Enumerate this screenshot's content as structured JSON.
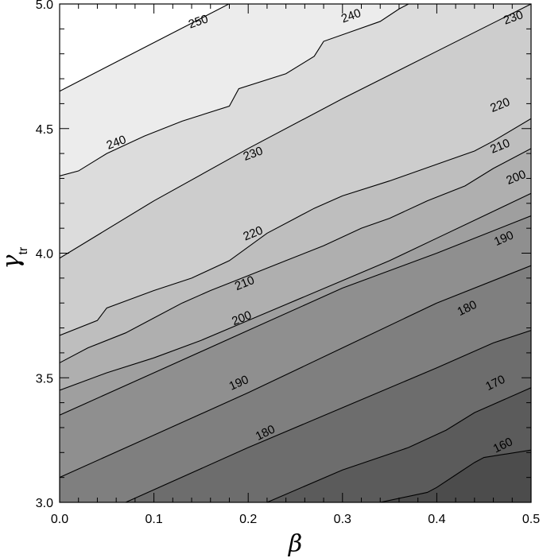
{
  "chart_data": {
    "type": "contour",
    "title": "",
    "xlabel": "β",
    "ylabel_main": "γ",
    "ylabel_sub": "tr",
    "xlim": [
      0.0,
      0.5
    ],
    "ylim": [
      3.0,
      5.0
    ],
    "x_ticks": [
      "0.0",
      "0.1",
      "0.2",
      "0.3",
      "0.4",
      "0.5"
    ],
    "y_ticks": [
      "3.0",
      "3.5",
      "4.0",
      "4.5",
      "5.0"
    ],
    "levels": [
      {
        "value": "250",
        "fill": "#ffffff",
        "points": [
          [
            0.0,
            4.65
          ],
          [
            0.2,
            5.04
          ]
        ],
        "label": {
          "x": 0.147,
          "y": 4.93,
          "rot": 19
        }
      },
      {
        "value": "240",
        "fill": "#ececec",
        "points": [
          [
            0.0,
            4.31
          ],
          [
            0.02,
            4.33
          ],
          [
            0.05,
            4.4
          ],
          [
            0.09,
            4.47
          ],
          [
            0.13,
            4.53
          ],
          [
            0.18,
            4.59
          ],
          [
            0.19,
            4.66
          ],
          [
            0.24,
            4.72
          ],
          [
            0.27,
            4.79
          ],
          [
            0.28,
            4.85
          ],
          [
            0.31,
            4.89
          ],
          [
            0.34,
            4.93
          ],
          [
            0.36,
            4.98
          ],
          [
            0.38,
            5.02
          ]
        ],
        "label": {
          "x": 0.06,
          "y": 4.445,
          "rot": 20,
          "label2x": 0.309,
          "label2y": 4.953
        }
      },
      {
        "value": "230",
        "fill": "#dcdcdc",
        "points": [
          [
            0.0,
            3.98
          ],
          [
            0.1,
            4.21
          ],
          [
            0.2,
            4.42
          ],
          [
            0.3,
            4.62
          ],
          [
            0.4,
            4.81
          ],
          [
            0.5,
            5.0
          ]
        ],
        "label": {
          "x": 0.205,
          "y": 4.4,
          "rot": 20,
          "label2x": 0.481,
          "label2y": 4.946
        }
      },
      {
        "value": "220",
        "fill": "#cdcdcd",
        "points": [
          [
            0.0,
            3.67
          ],
          [
            0.04,
            3.73
          ],
          [
            0.05,
            3.78
          ],
          [
            0.1,
            3.85
          ],
          [
            0.14,
            3.9
          ],
          [
            0.18,
            3.97
          ],
          [
            0.22,
            4.08
          ],
          [
            0.25,
            4.14
          ],
          [
            0.27,
            4.18
          ],
          [
            0.3,
            4.23
          ],
          [
            0.35,
            4.29
          ],
          [
            0.41,
            4.37
          ],
          [
            0.44,
            4.41
          ],
          [
            0.46,
            4.45
          ],
          [
            0.5,
            4.54
          ]
        ],
        "label": {
          "x": 0.205,
          "y": 4.08,
          "rot": 22,
          "label2x": 0.467,
          "label2y": 4.595
        }
      },
      {
        "value": "210",
        "fill": "#bebebe",
        "points": [
          [
            0.0,
            3.56
          ],
          [
            0.03,
            3.62
          ],
          [
            0.07,
            3.68
          ],
          [
            0.1,
            3.74
          ],
          [
            0.13,
            3.8
          ],
          [
            0.16,
            3.85
          ],
          [
            0.2,
            3.91
          ],
          [
            0.24,
            3.97
          ],
          [
            0.28,
            4.03
          ],
          [
            0.32,
            4.1
          ],
          [
            0.35,
            4.14
          ],
          [
            0.39,
            4.21
          ],
          [
            0.43,
            4.27
          ],
          [
            0.46,
            4.34
          ],
          [
            0.5,
            4.42
          ]
        ],
        "label": {
          "x": 0.196,
          "y": 3.88,
          "rot": 22,
          "label2x": 0.467,
          "label2y": 4.43
        }
      },
      {
        "value": "200",
        "fill": "#afafaf",
        "points": [
          [
            0.0,
            3.45
          ],
          [
            0.05,
            3.52
          ],
          [
            0.1,
            3.58
          ],
          [
            0.15,
            3.65
          ],
          [
            0.2,
            3.73
          ],
          [
            0.25,
            3.81
          ],
          [
            0.3,
            3.89
          ],
          [
            0.35,
            3.97
          ],
          [
            0.4,
            4.06
          ],
          [
            0.45,
            4.15
          ],
          [
            0.5,
            4.24
          ]
        ],
        "label": {
          "x": 0.193,
          "y": 3.74,
          "rot": 22,
          "label2x": 0.484,
          "label2y": 4.305
        }
      },
      {
        "value": "190",
        "fill": "#9f9f9f",
        "points": [
          [
            0.0,
            3.35
          ],
          [
            0.1,
            3.52
          ],
          [
            0.2,
            3.69
          ],
          [
            0.3,
            3.86
          ],
          [
            0.4,
            4.0
          ],
          [
            0.5,
            4.15
          ]
        ],
        "label": {
          "x": 0.19,
          "y": 3.48,
          "rot": 24,
          "label2x": 0.471,
          "label2y": 4.06
        }
      },
      {
        "value": "180",
        "fill": "#8f8f8f",
        "points": [
          [
            0.0,
            3.1
          ],
          [
            0.1,
            3.27
          ],
          [
            0.2,
            3.44
          ],
          [
            0.3,
            3.62
          ],
          [
            0.4,
            3.8
          ],
          [
            0.5,
            3.95
          ]
        ],
        "label": {
          "x": 0.218,
          "y": 3.28,
          "rot": 26,
          "label2x": 0.432,
          "label2y": 3.78
        }
      },
      {
        "value": "170",
        "fill": "#7f7f7f",
        "points": [
          [
            0.07,
            3.0
          ],
          [
            0.2,
            3.22
          ],
          [
            0.3,
            3.38
          ],
          [
            0.4,
            3.54
          ],
          [
            0.46,
            3.64
          ],
          [
            0.5,
            3.69
          ]
        ],
        "label": {
          "x": 0.462,
          "y": 3.48,
          "rot": 26
        }
      },
      {
        "value": "160",
        "fill": "#6d6d6d",
        "points": [
          [
            0.22,
            3.0
          ],
          [
            0.3,
            3.13
          ],
          [
            0.37,
            3.22
          ],
          [
            0.41,
            3.29
          ],
          [
            0.44,
            3.36
          ],
          [
            0.5,
            3.46
          ]
        ],
        "label": {
          "x": 0.47,
          "y": 3.23,
          "rot": 26
        }
      },
      {
        "value": "",
        "fill": "#5b5b5b",
        "points": [
          [
            0.34,
            3.0
          ],
          [
            0.39,
            3.04
          ],
          [
            0.4,
            3.06
          ],
          [
            0.42,
            3.11
          ],
          [
            0.44,
            3.16
          ],
          [
            0.45,
            3.18
          ],
          [
            0.5,
            3.21
          ]
        ],
        "label": null
      }
    ]
  }
}
